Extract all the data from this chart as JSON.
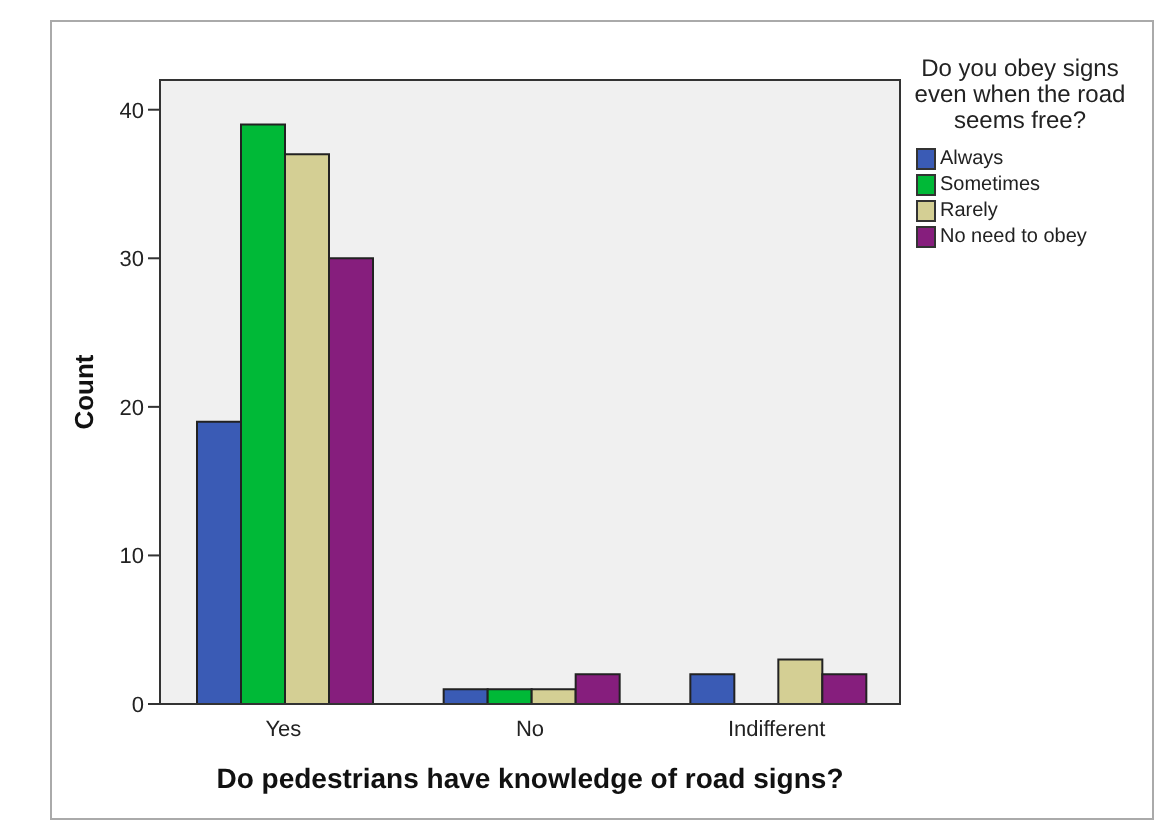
{
  "chart_data": {
    "type": "bar",
    "xlabel": "Do pedestrians have knowledge of road signs?",
    "ylabel": "Count",
    "legend_title": "Do you obey signs even when the road seems free?",
    "categories": [
      "Yes",
      "No",
      "Indifferent"
    ],
    "series": [
      {
        "name": "Always",
        "color": "#3a5bb5",
        "values": [
          19,
          1,
          2
        ]
      },
      {
        "name": "Sometimes",
        "color": "#00b937",
        "values": [
          39,
          1,
          null
        ]
      },
      {
        "name": "Rarely",
        "color": "#d4cf94",
        "values": [
          37,
          1,
          3
        ]
      },
      {
        "name": "No need to obey",
        "color": "#861e7d",
        "values": [
          30,
          2,
          2
        ]
      }
    ],
    "ylim": [
      0,
      42
    ],
    "yticks": [
      0,
      10,
      20,
      30,
      40
    ],
    "legend": "right"
  }
}
